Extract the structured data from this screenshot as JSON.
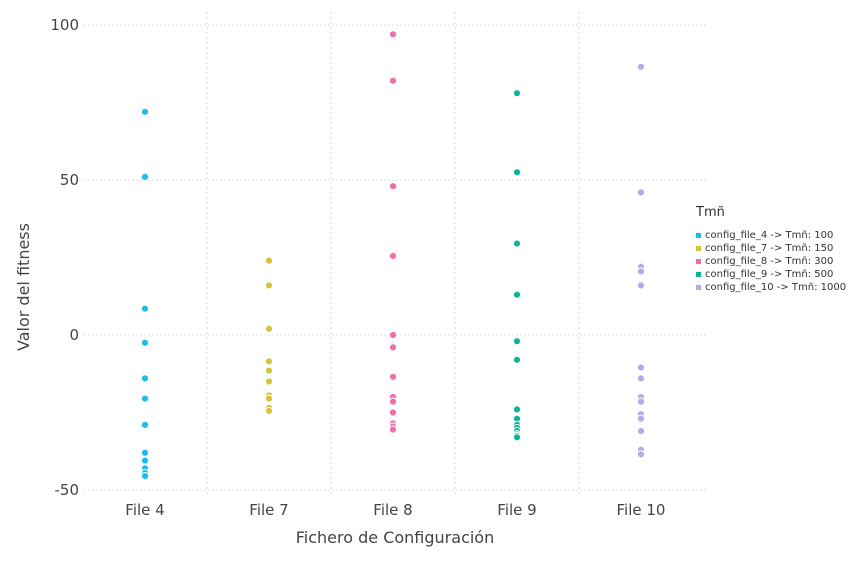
{
  "chart_data": {
    "type": "scatter",
    "title": "",
    "xlabel": "Fichero de Configuración",
    "ylabel": "Valor del fitness",
    "categories": [
      "File 4",
      "File 7",
      "File 8",
      "File 9",
      "File 10"
    ],
    "ylim": [
      -50,
      100
    ],
    "yticks": [
      "100",
      "50",
      "0",
      "-50"
    ],
    "ytick_values": [
      100,
      50,
      0,
      -50
    ],
    "grid": true,
    "legend_title": "Tmñ",
    "legend_position": "right",
    "series": [
      {
        "name": "config_file_4 -> Tmñ: 100",
        "category": "File 4",
        "color": "#1bbee8",
        "values": [
          72,
          51,
          8.5,
          -2.5,
          -14,
          -20.5,
          -29,
          -38,
          -40.5,
          -43,
          -44.5,
          -45.5
        ]
      },
      {
        "name": "config_file_7 -> Tmñ: 150",
        "category": "File 7",
        "color": "#d3c43e",
        "values": [
          24,
          16,
          2,
          -8.5,
          -11.5,
          -15,
          -19.5,
          -20.5,
          -23.5,
          -24.5
        ]
      },
      {
        "name": "config_file_8 -> Tmñ: 300",
        "category": "File 8",
        "color": "#f26da9",
        "values": [
          97,
          82,
          48,
          25.5,
          0,
          -4,
          -13.5,
          -20,
          -21.5,
          -25,
          -28.5,
          -29.5,
          -30.5
        ]
      },
      {
        "name": "config_file_9 -> Tmñ: 500",
        "category": "File 9",
        "color": "#0fb39a",
        "values": [
          78,
          52.5,
          29.5,
          13,
          -2,
          -8,
          -24,
          -27,
          -29,
          -30,
          -31,
          -32,
          -32.5,
          -33
        ]
      },
      {
        "name": "config_file_10 -> Tmñ: 1000",
        "category": "File 10",
        "color": "#b9a7ec",
        "values": [
          86.5,
          46,
          22,
          20.5,
          16,
          -10.5,
          -14,
          -20,
          -21.5,
          -25.5,
          -27,
          -31,
          -37,
          -38.5
        ]
      }
    ]
  }
}
